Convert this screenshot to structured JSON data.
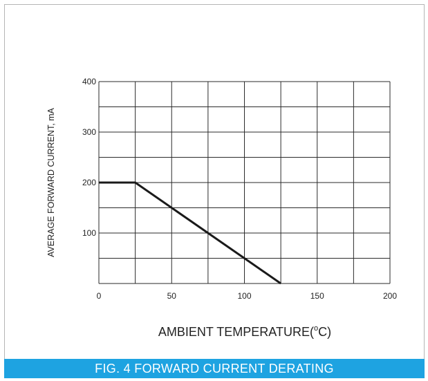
{
  "chart_data": {
    "type": "line",
    "xlabel_parts": {
      "before": "AMBIENT TEMPERATURE(",
      "sup": "o",
      "after": "C)"
    },
    "ylabel": "AVERAGE FORWARD CURRENT, mA",
    "caption": "FIG. 4 FORWARD CURRENT DERATING",
    "xlim": [
      0,
      200
    ],
    "ylim": [
      0,
      400
    ],
    "x_ticks": [
      0,
      50,
      100,
      150,
      200
    ],
    "y_ticks": [
      100,
      200,
      300,
      400
    ],
    "x_grid": [
      0,
      25,
      50,
      75,
      100,
      125,
      150,
      175,
      200
    ],
    "y_grid": [
      0,
      50,
      100,
      150,
      200,
      250,
      300,
      350,
      400
    ],
    "grid": true,
    "series": [
      {
        "x": [
          0,
          25,
          125
        ],
        "y": [
          200,
          200,
          0
        ],
        "color": "#1a1a1a"
      }
    ]
  }
}
